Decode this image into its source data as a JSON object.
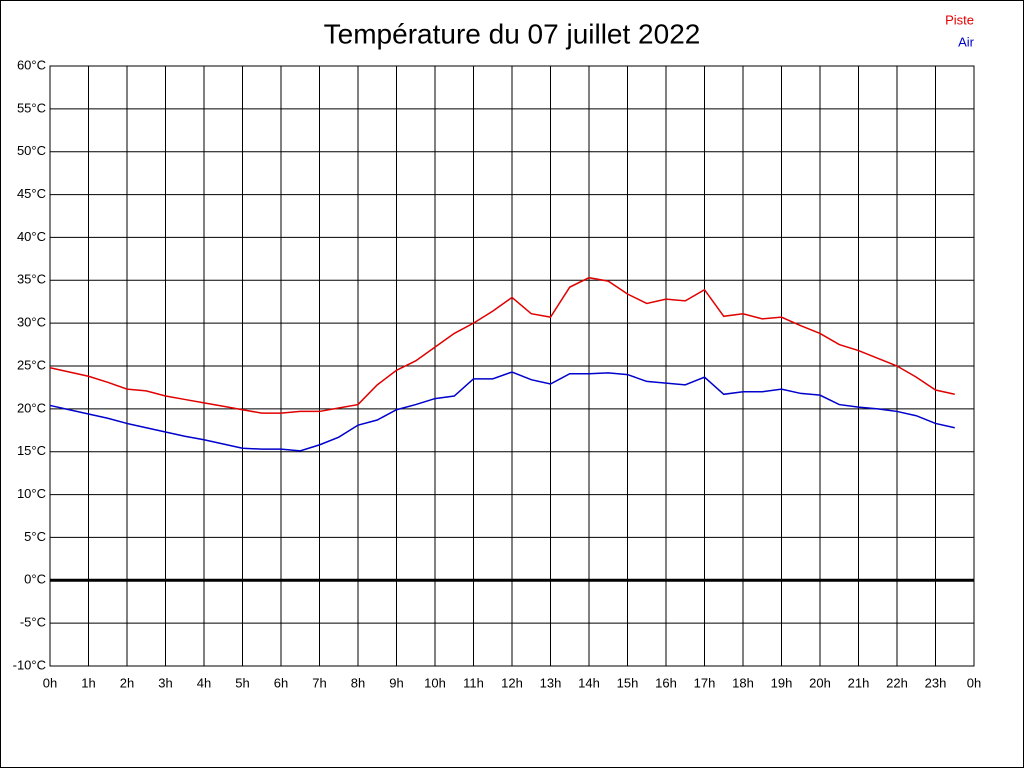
{
  "chart_data": {
    "type": "line",
    "title": "Température du 07 juillet 2022",
    "x": [
      0,
      0.5,
      1,
      1.5,
      2,
      2.5,
      3,
      3.5,
      4,
      4.5,
      5,
      5.5,
      6,
      6.5,
      7,
      7.5,
      8,
      8.5,
      9,
      9.5,
      10,
      10.5,
      11,
      11.5,
      12,
      12.5,
      13,
      13.5,
      14,
      14.5,
      15,
      15.5,
      16,
      16.5,
      17,
      17.5,
      18,
      18.5,
      19,
      19.5,
      20,
      20.5,
      21,
      21.5,
      22,
      22.5,
      23,
      23.5
    ],
    "series": [
      {
        "name": "Piste",
        "color": "#e00000",
        "values": [
          24.8,
          24.3,
          23.8,
          23.1,
          22.3,
          22.1,
          21.5,
          21.1,
          20.7,
          20.3,
          19.9,
          19.5,
          19.5,
          19.7,
          19.7,
          20.1,
          20.5,
          22.8,
          24.5,
          25.6,
          27.2,
          28.8,
          30.0,
          31.4,
          33.0,
          31.1,
          30.7,
          34.2,
          35.3,
          34.9,
          33.4,
          32.3,
          32.8,
          32.6,
          33.9,
          30.8,
          31.1,
          30.5,
          30.7,
          29.7,
          28.8,
          27.5,
          26.8,
          25.9,
          25.0,
          23.7,
          22.2,
          21.7
        ]
      },
      {
        "name": "Air",
        "color": "#0000cc",
        "values": [
          20.4,
          19.9,
          19.4,
          18.9,
          18.3,
          17.8,
          17.3,
          16.8,
          16.4,
          15.9,
          15.4,
          15.3,
          15.3,
          15.1,
          15.8,
          16.7,
          18.1,
          18.7,
          19.9,
          20.5,
          21.2,
          21.5,
          23.5,
          23.5,
          24.3,
          23.4,
          22.9,
          24.1,
          24.1,
          24.2,
          24.0,
          23.2,
          23.0,
          22.8,
          23.7,
          21.7,
          22.0,
          22.0,
          22.3,
          21.8,
          21.6,
          20.5,
          20.2,
          20.0,
          19.7,
          19.2,
          18.3,
          17.8
        ]
      }
    ],
    "xlim": [
      0,
      24
    ],
    "xticks": [
      {
        "value": 0,
        "label": "0h"
      },
      {
        "value": 1,
        "label": "1h"
      },
      {
        "value": 2,
        "label": "2h"
      },
      {
        "value": 3,
        "label": "3h"
      },
      {
        "value": 4,
        "label": "4h"
      },
      {
        "value": 5,
        "label": "5h"
      },
      {
        "value": 6,
        "label": "6h"
      },
      {
        "value": 7,
        "label": "7h"
      },
      {
        "value": 8,
        "label": "8h"
      },
      {
        "value": 9,
        "label": "9h"
      },
      {
        "value": 10,
        "label": "10h"
      },
      {
        "value": 11,
        "label": "11h"
      },
      {
        "value": 12,
        "label": "12h"
      },
      {
        "value": 13,
        "label": "13h"
      },
      {
        "value": 14,
        "label": "14h"
      },
      {
        "value": 15,
        "label": "15h"
      },
      {
        "value": 16,
        "label": "16h"
      },
      {
        "value": 17,
        "label": "17h"
      },
      {
        "value": 18,
        "label": "18h"
      },
      {
        "value": 19,
        "label": "19h"
      },
      {
        "value": 20,
        "label": "20h"
      },
      {
        "value": 21,
        "label": "21h"
      },
      {
        "value": 22,
        "label": "22h"
      },
      {
        "value": 23,
        "label": "23h"
      },
      {
        "value": 24,
        "label": "0h"
      }
    ],
    "ylim": [
      -10,
      60
    ],
    "yticks": [
      {
        "value": -10,
        "label": "-10°C"
      },
      {
        "value": -5,
        "label": "-5°C"
      },
      {
        "value": 0,
        "label": "0°C"
      },
      {
        "value": 5,
        "label": "5°C"
      },
      {
        "value": 10,
        "label": "10°C"
      },
      {
        "value": 15,
        "label": "15°C"
      },
      {
        "value": 20,
        "label": "20°C"
      },
      {
        "value": 25,
        "label": "25°C"
      },
      {
        "value": 30,
        "label": "30°C"
      },
      {
        "value": 35,
        "label": "35°C"
      },
      {
        "value": 40,
        "label": "40°C"
      },
      {
        "value": 45,
        "label": "45°C"
      },
      {
        "value": 50,
        "label": "50°C"
      },
      {
        "value": 55,
        "label": "55°C"
      },
      {
        "value": 60,
        "label": "60°C"
      }
    ],
    "grid": true,
    "legend": "top-right"
  }
}
